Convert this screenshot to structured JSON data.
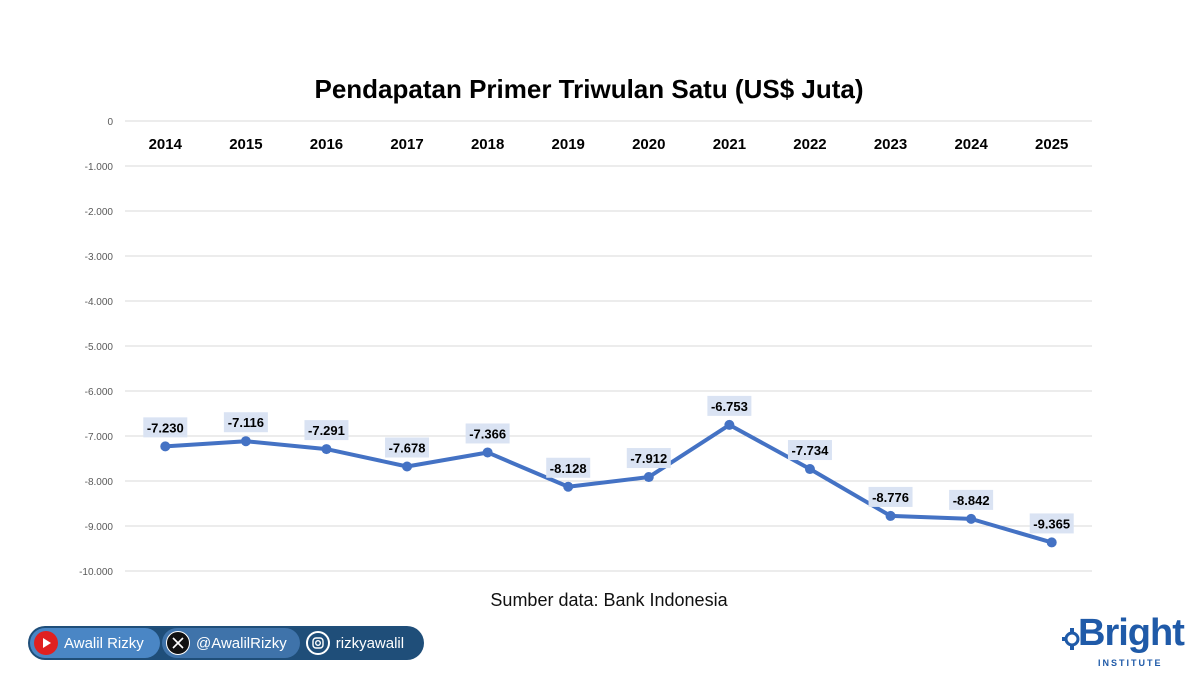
{
  "chart_data": {
    "type": "line",
    "title": "Pendapatan Primer Triwulan Satu (US$ Juta)",
    "source": "Sumber data: Bank Indonesia",
    "categories": [
      "2014",
      "2015",
      "2016",
      "2017",
      "2018",
      "2019",
      "2020",
      "2021",
      "2022",
      "2023",
      "2024",
      "2025"
    ],
    "values": [
      -7230,
      -7116,
      -7291,
      -7678,
      -7366,
      -8128,
      -7912,
      -6753,
      -7734,
      -8776,
      -8842,
      -9365
    ],
    "data_labels": [
      "-7.230",
      "-7.116",
      "-7.291",
      "-7.678",
      "-7.366",
      "-8.128",
      "-7.912",
      "-6.753",
      "-7.734",
      "-8.776",
      "-8.842",
      "-9.365"
    ],
    "ylim": [
      -10000,
      0
    ],
    "y_ticks": [
      0,
      -1000,
      -2000,
      -3000,
      -4000,
      -5000,
      -6000,
      -7000,
      -8000,
      -9000,
      -10000
    ],
    "y_tick_labels": [
      "0",
      "-1.000",
      "-2.000",
      "-3.000",
      "-4.000",
      "-5.000",
      "-6.000",
      "-7.000",
      "-8.000",
      "-9.000",
      "-10.000"
    ],
    "category_axis_position": "top",
    "grid": true,
    "series_color": "#4472c4",
    "label_bg": "#dae3f3"
  },
  "footer": {
    "youtube": "Awalil Rizky",
    "twitter": "@AwalilRizky",
    "instagram": "rizkyawalil",
    "brand": "Bright",
    "brand_sub": "INSTITUTE",
    "youtube_icon": "youtube-icon",
    "twitter_icon": "x-icon",
    "instagram_icon": "instagram-icon"
  }
}
